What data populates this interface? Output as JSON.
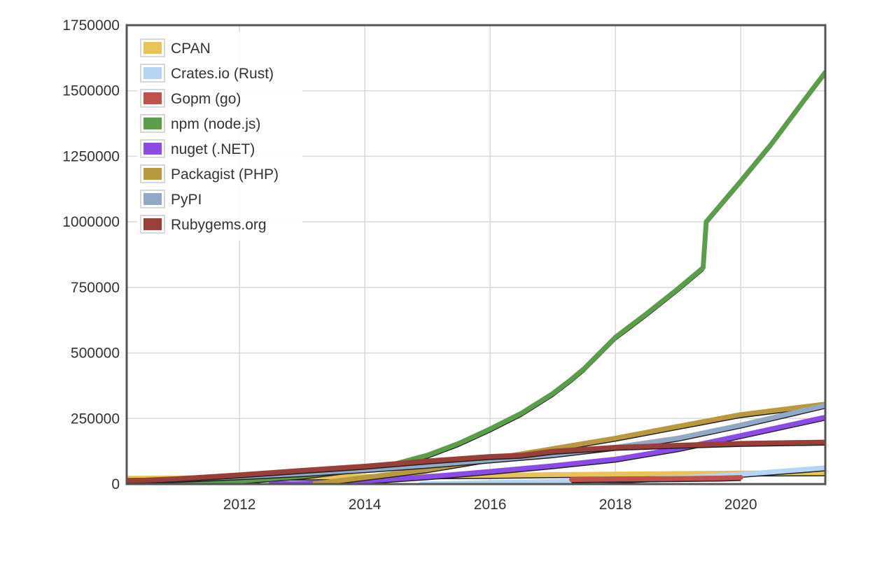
{
  "chart_data": {
    "type": "line",
    "title": "",
    "xlabel": "",
    "ylabel": "",
    "xlim": [
      2010.2,
      2021.35
    ],
    "ylim": [
      0,
      1750000
    ],
    "x_ticks": [
      2012,
      2014,
      2016,
      2018,
      2020
    ],
    "x_tick_labels": [
      "2012",
      "2014",
      "2016",
      "2018",
      "2020"
    ],
    "y_ticks": [
      0,
      250000,
      500000,
      750000,
      1000000,
      1250000,
      1500000,
      1750000
    ],
    "y_tick_labels": [
      "0",
      "250000",
      "500000",
      "750000",
      "1000000",
      "1250000",
      "1500000",
      "1750000"
    ],
    "grid": true,
    "legend_position": "top-left",
    "series": [
      {
        "name": "CPAN",
        "color": "#e8c35a",
        "points": [
          [
            2010.2,
            22000
          ],
          [
            2012,
            25000
          ],
          [
            2014,
            29000
          ],
          [
            2016,
            33000
          ],
          [
            2017,
            36000
          ],
          [
            2018,
            38000
          ],
          [
            2019,
            40000
          ],
          [
            2020,
            42000
          ],
          [
            2021.35,
            43000
          ]
        ]
      },
      {
        "name": "Crates.io (Rust)",
        "color": "#b4d6f2",
        "points": [
          [
            2014.9,
            500
          ],
          [
            2015.5,
            3000
          ],
          [
            2016,
            6000
          ],
          [
            2017,
            10000
          ],
          [
            2018,
            15000
          ],
          [
            2019,
            24000
          ],
          [
            2020,
            37000
          ],
          [
            2021.35,
            62000
          ]
        ]
      },
      {
        "name": "Gopm (go)",
        "color": "#c0514d",
        "points": [
          [
            2017.3,
            17000
          ],
          [
            2018,
            19000
          ],
          [
            2019,
            21000
          ],
          [
            2019.7,
            23000
          ],
          [
            2020,
            25000
          ]
        ]
      },
      {
        "name": "npm (node.js)",
        "color": "#5a9e4a",
        "points": [
          [
            2010.95,
            4000
          ],
          [
            2012,
            12000
          ],
          [
            2013,
            30000
          ],
          [
            2014,
            60000
          ],
          [
            2014.5,
            78000
          ],
          [
            2015,
            110000
          ],
          [
            2015.5,
            155000
          ],
          [
            2016,
            210000
          ],
          [
            2016.5,
            270000
          ],
          [
            2017,
            345000
          ],
          [
            2017.3,
            400000
          ],
          [
            2017.5,
            440000
          ],
          [
            2018,
            560000
          ],
          [
            2018.5,
            650000
          ],
          [
            2019,
            745000
          ],
          [
            2019.4,
            825000
          ],
          [
            2019.45,
            1000000
          ],
          [
            2020,
            1155000
          ],
          [
            2020.5,
            1300000
          ],
          [
            2021,
            1460000
          ],
          [
            2021.35,
            1570000
          ]
        ]
      },
      {
        "name": "nuget (.NET)",
        "color": "#8b4be6",
        "points": [
          [
            2012.5,
            0
          ],
          [
            2013,
            3000
          ],
          [
            2014,
            12000
          ],
          [
            2015,
            28000
          ],
          [
            2016,
            48000
          ],
          [
            2017,
            70000
          ],
          [
            2018,
            95000
          ],
          [
            2019,
            135000
          ],
          [
            2020,
            185000
          ],
          [
            2021.35,
            255000
          ]
        ]
      },
      {
        "name": "Packagist (PHP)",
        "color": "#b8993f",
        "points": [
          [
            2013.2,
            2000
          ],
          [
            2014,
            25000
          ],
          [
            2015,
            55000
          ],
          [
            2016,
            95000
          ],
          [
            2017,
            135000
          ],
          [
            2018,
            175000
          ],
          [
            2019,
            220000
          ],
          [
            2020,
            265000
          ],
          [
            2021.35,
            305000
          ]
        ]
      },
      {
        "name": "PyPI",
        "color": "#91a9c6",
        "points": [
          [
            2010.2,
            12000
          ],
          [
            2011,
            18000
          ],
          [
            2012,
            28000
          ],
          [
            2013,
            40000
          ],
          [
            2014,
            55000
          ],
          [
            2015,
            72000
          ],
          [
            2016,
            92000
          ],
          [
            2017,
            112000
          ],
          [
            2018,
            140000
          ],
          [
            2019,
            175000
          ],
          [
            2020,
            225000
          ],
          [
            2021.35,
            300000
          ]
        ]
      },
      {
        "name": "Rubygems.org",
        "color": "#9a3e3a",
        "points": [
          [
            2010.2,
            14000
          ],
          [
            2010.5,
            15000
          ],
          [
            2011,
            20000
          ],
          [
            2012,
            35000
          ],
          [
            2013,
            52000
          ],
          [
            2014,
            68000
          ],
          [
            2015,
            88000
          ],
          [
            2016,
            105000
          ],
          [
            2016.5,
            110000
          ],
          [
            2017,
            125000
          ],
          [
            2018,
            140000
          ],
          [
            2019,
            148000
          ],
          [
            2020,
            155000
          ],
          [
            2021.35,
            160000
          ]
        ]
      }
    ]
  }
}
